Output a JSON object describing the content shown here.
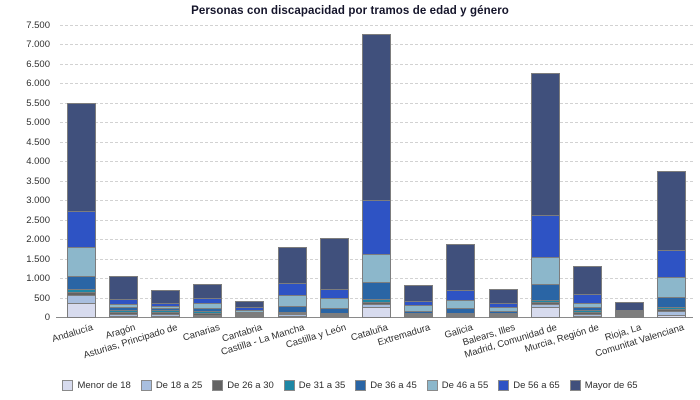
{
  "title": "Personas con discapacidad por tramos de edad y género",
  "colors": {
    "background": "#ffffff",
    "grid": "#d2d2d2",
    "axis": "#8a8a8a",
    "segment_border": "#7d7d7d",
    "text": "#2e2e2e",
    "title_text": "#14142a"
  },
  "chart_data": {
    "type": "bar",
    "stacked": true,
    "grid": "horizontal-dashed",
    "legend_position": "bottom",
    "ylim": [
      0,
      7500
    ],
    "ytick_step": 500,
    "ytick_labels": [
      "0",
      "500",
      "1.000",
      "1.500",
      "2.000",
      "2.500",
      "3.000",
      "3.500",
      "4.000",
      "4.500",
      "5.000",
      "5.500",
      "6.000",
      "6.500",
      "7.000",
      "7.500"
    ],
    "categories": [
      "Andalucía",
      "Aragón",
      "Asturias, Principado de",
      "Canarias",
      "Cantabria",
      "Castilla - La Mancha",
      "Castilla y León",
      "Cataluña",
      "Extremadura",
      "Galicia",
      "Balears, Illes",
      "Madrid, Comunidad de",
      "Murcia, Región de",
      "Rioja, La",
      "Comunitat Valenciana"
    ],
    "series": [
      {
        "name": "Menor de 18",
        "color": "#d7dbee",
        "values": [
          375,
          40,
          60,
          30,
          20,
          50,
          30,
          275,
          25,
          25,
          35,
          275,
          35,
          25,
          75
        ]
      },
      {
        "name": "De 18 a 25",
        "color": "#a9bfdf",
        "values": [
          205,
          60,
          50,
          20,
          15,
          45,
          30,
          65,
          25,
          30,
          30,
          65,
          50,
          20,
          90
        ]
      },
      {
        "name": "De 26 a 30",
        "color": "#636363",
        "values": [
          75,
          50,
          40,
          60,
          15,
          30,
          25,
          60,
          20,
          25,
          20,
          60,
          50,
          30,
          60
        ]
      },
      {
        "name": "De 31 a 35",
        "color": "#1e87a5",
        "values": [
          75,
          50,
          45,
          45,
          20,
          30,
          20,
          75,
          15,
          25,
          20,
          60,
          45,
          10,
          55
        ]
      },
      {
        "name": "De 36 a 45",
        "color": "#2a65a5",
        "values": [
          325,
          70,
          60,
          75,
          25,
          155,
          120,
          435,
          50,
          120,
          50,
          405,
          75,
          20,
          260
        ]
      },
      {
        "name": "De 46 a 55",
        "color": "#8cb7cb",
        "values": [
          745,
          80,
          60,
          120,
          40,
          280,
          255,
          720,
          155,
          195,
          95,
          685,
          105,
          20,
          525
        ]
      },
      {
        "name": "De 56 a 65",
        "color": "#2e53c4",
        "values": [
          925,
          130,
          70,
          130,
          70,
          300,
          240,
          1375,
          115,
          255,
          110,
          1070,
          225,
          25,
          700
        ]
      },
      {
        "name": "Mayor de 65",
        "color": "#40507c",
        "values": [
          2775,
          600,
          325,
          370,
          145,
          925,
          1300,
          4255,
          420,
          1180,
          360,
          3650,
          725,
          200,
          2025
        ]
      }
    ]
  }
}
